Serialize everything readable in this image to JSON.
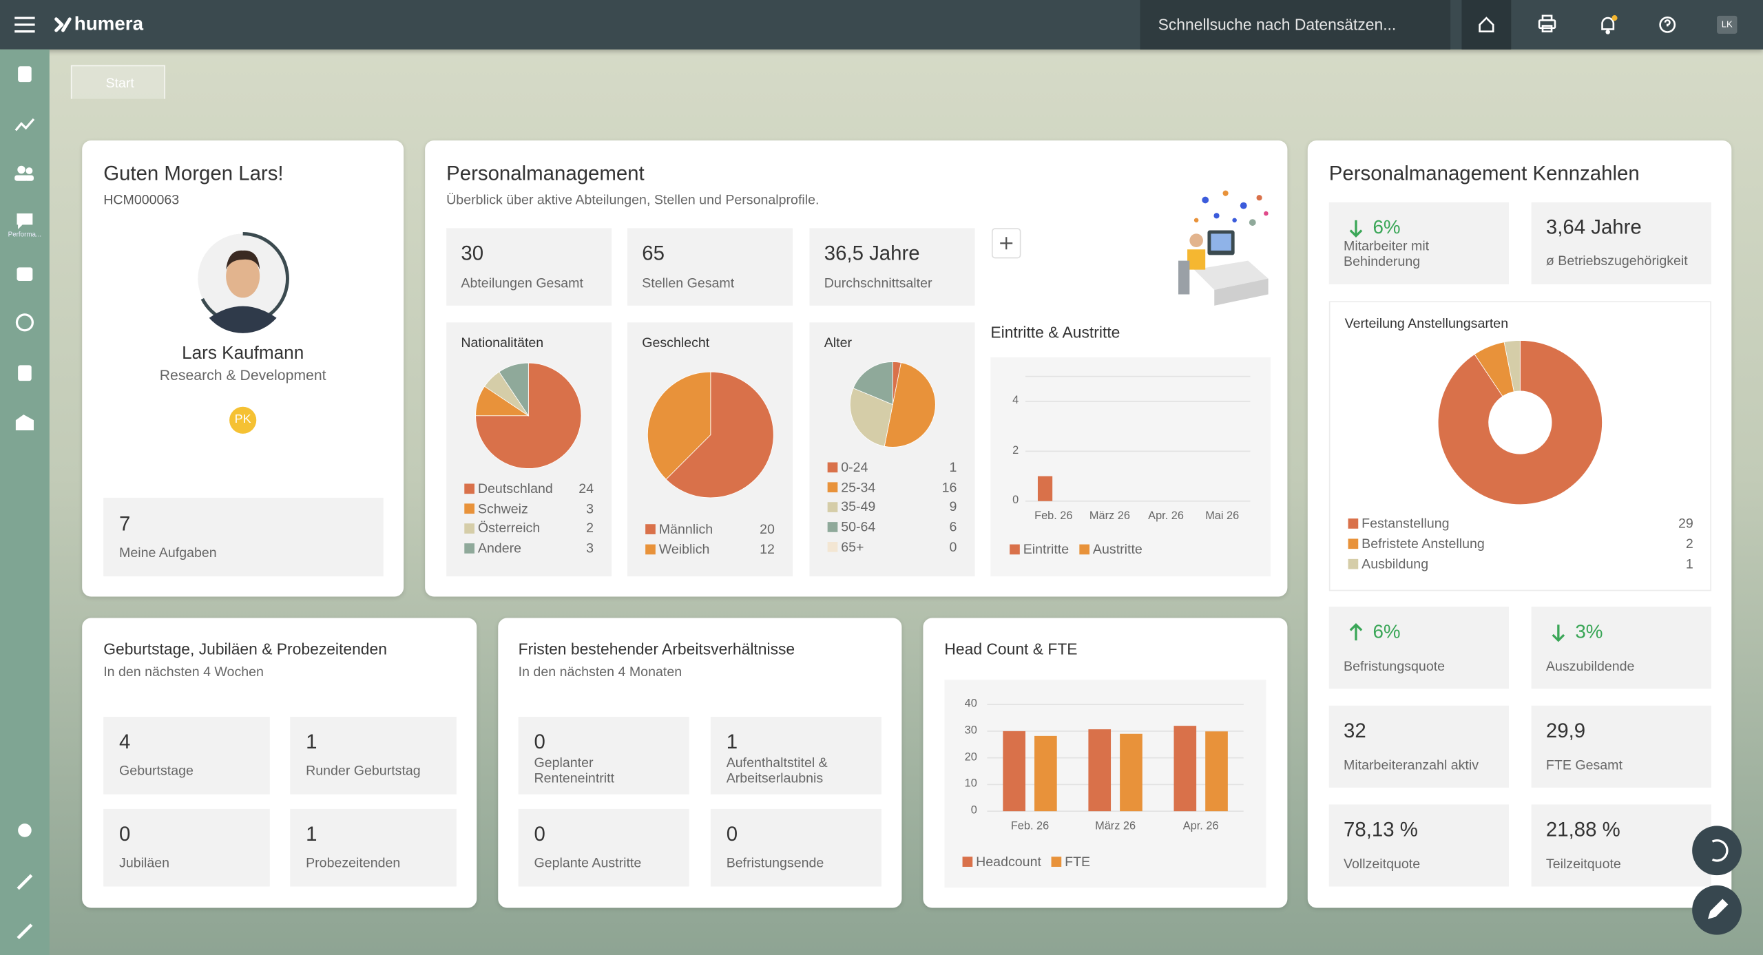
{
  "topbar": {
    "brand": "humera",
    "search": "Schnellsuche nach Datensätzen...",
    "avatar": "LK"
  },
  "sidebar": {
    "performance_label": "Performa..."
  },
  "tab": "Start",
  "welcome": {
    "title": "Guten Morgen Lars!",
    "id": "HCM000063",
    "name": "Lars Kaufmann",
    "department": "Research & Development",
    "badge": "PK",
    "tasks_value": "7",
    "tasks_label": "Meine Aufgaben"
  },
  "personnel": {
    "title": "Personalmanagement",
    "subtitle": "Überblick über aktive Abteilungen, Stellen und Personalprofile.",
    "kpis": [
      {
        "value": "30",
        "label": "Abteilungen Gesamt"
      },
      {
        "value": "65",
        "label": "Stellen Gesamt"
      },
      {
        "value": "36,5 Jahre",
        "label": "Durchschnittsalter"
      }
    ],
    "pies": [
      {
        "type": "pie",
        "title": "Nationalitäten",
        "categories": [
          "Deutschland",
          "Schweiz",
          "Österreich",
          "Andere"
        ],
        "values": [
          24,
          3,
          2,
          3
        ],
        "colors": [
          "#d9714a",
          "#e8923a",
          "#d5cda8",
          "#8fa99a"
        ]
      },
      {
        "type": "pie",
        "title": "Geschlecht",
        "categories": [
          "Männlich",
          "Weiblich"
        ],
        "values": [
          20,
          12
        ],
        "colors": [
          "#d9714a",
          "#e8923a"
        ]
      },
      {
        "type": "pie",
        "title": "Alter",
        "categories": [
          "0-24",
          "25-34",
          "35-49",
          "50-64",
          "65+"
        ],
        "values": [
          1,
          16,
          9,
          6,
          0
        ],
        "colors": [
          "#d9714a",
          "#e8923a",
          "#d5cda8",
          "#8fa99a",
          "#f3e6d3"
        ]
      }
    ],
    "flow": {
      "type": "bar",
      "title": "Eintritte & Austritte",
      "categories": [
        "Feb. 26",
        "März 26",
        "Apr. 26",
        "Mai 26"
      ],
      "series": [
        {
          "name": "Eintritte",
          "color": "#d9714a",
          "values": [
            1,
            0,
            0,
            0
          ]
        },
        {
          "name": "Austritte",
          "color": "#e8923a",
          "values": [
            0,
            0,
            0,
            0
          ]
        }
      ],
      "ylim": [
        0,
        5
      ],
      "yticks": [
        0,
        2,
        4
      ],
      "grid": true
    }
  },
  "metrics": {
    "title": "Personalmanagement Kennzahlen",
    "top": [
      {
        "trend": "down",
        "value": "6%",
        "label": "Mitarbeiter mit Behinderung"
      },
      {
        "value": "3,64 Jahre",
        "label": "ø Betriebszugehörigkeit"
      }
    ],
    "distribution": {
      "type": "donut",
      "title": "Verteilung Anstellungsarten",
      "categories": [
        "Festanstellung",
        "Befristete Anstellung",
        "Ausbildung"
      ],
      "values": [
        29,
        2,
        1
      ],
      "colors": [
        "#d9714a",
        "#e8923a",
        "#d5cda8"
      ]
    },
    "bottom": [
      {
        "trend": "up",
        "value": "6%",
        "label": "Befristungsquote"
      },
      {
        "trend": "down",
        "value": "3%",
        "label": "Auszubildende"
      },
      {
        "value": "32",
        "label": "Mitarbeiteranzahl aktiv"
      },
      {
        "value": "29,9",
        "label": "FTE Gesamt"
      },
      {
        "value": "78,13 %",
        "label": "Vollzeitquote"
      },
      {
        "value": "21,88 %",
        "label": "Teilzeitquote"
      }
    ]
  },
  "birthdays": {
    "title": "Geburtstage, Jubiläen & Probezeitenden",
    "subtitle": "In den nächsten 4 Wochen",
    "items": [
      {
        "value": "4",
        "label": "Geburtstage"
      },
      {
        "value": "1",
        "label": "Runder Geburtstag"
      },
      {
        "value": "0",
        "label": "Jubiläen"
      },
      {
        "value": "1",
        "label": "Probezeitenden"
      }
    ]
  },
  "deadlines": {
    "title": "Fristen bestehender Arbeitsverhältnisse",
    "subtitle": "In den nächsten 4 Monaten",
    "items": [
      {
        "value": "0",
        "label": "Geplanter Renteneintritt"
      },
      {
        "value": "1",
        "label": "Aufenthaltstitel & Arbeitserlaubnis"
      },
      {
        "value": "0",
        "label": "Geplante Austritte"
      },
      {
        "value": "0",
        "label": "Befristungsende"
      }
    ]
  },
  "headcount": {
    "type": "bar",
    "title": "Head Count & FTE",
    "categories": [
      "Feb. 26",
      "März 26",
      "Apr. 26"
    ],
    "series": [
      {
        "name": "Headcount",
        "color": "#d9714a",
        "values": [
          30,
          30.7,
          32
        ]
      },
      {
        "name": "FTE",
        "color": "#e8923a",
        "values": [
          28.2,
          29,
          29.9
        ]
      }
    ],
    "ylim": [
      0,
      40
    ],
    "yticks": [
      0,
      10,
      20,
      30,
      40
    ],
    "grid": true
  }
}
